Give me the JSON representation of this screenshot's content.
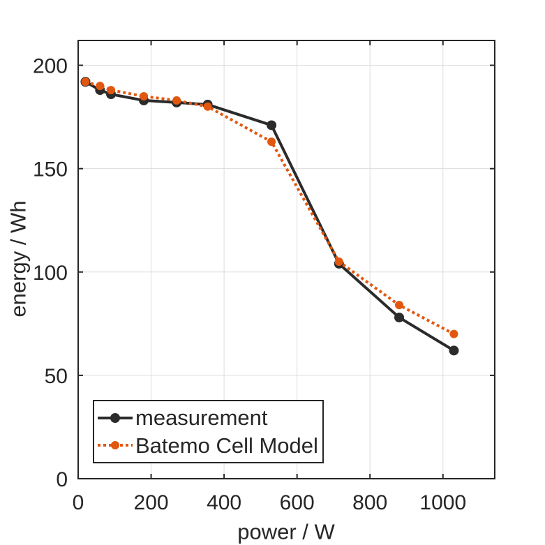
{
  "chart_data": {
    "type": "line",
    "title": "",
    "xlabel": "power / W",
    "ylabel": "energy / Wh",
    "xlim": [
      0,
      1142
    ],
    "ylim": [
      0,
      212
    ],
    "xticks": [
      0,
      200,
      400,
      600,
      800,
      1000
    ],
    "yticks": [
      0,
      50,
      100,
      150,
      200
    ],
    "grid": true,
    "legend_position": "lower-left",
    "x": [
      20,
      60,
      90,
      180,
      270,
      355,
      530,
      715,
      880,
      1030
    ],
    "series": [
      {
        "name": "measurement",
        "color": "#2b2b2b",
        "line_style": "solid",
        "marker": "circle",
        "values": [
          192,
          188,
          186,
          183,
          182,
          181,
          171,
          104,
          78,
          62
        ]
      },
      {
        "name": "Batemo Cell Model",
        "color": "#e2570f",
        "line_style": "dotted",
        "marker": "circle",
        "values": [
          192,
          190,
          188,
          185,
          183,
          180,
          163,
          105,
          84,
          70
        ]
      }
    ],
    "axis_color": "#262626",
    "grid_color": "#dcdcdc",
    "text_color": "#262626",
    "background_color": "#ffffff"
  }
}
